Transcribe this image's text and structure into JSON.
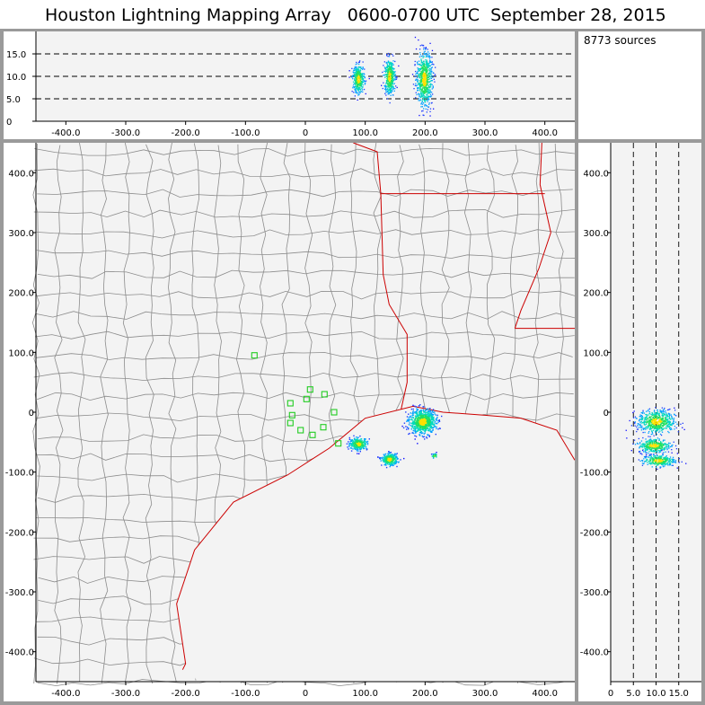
{
  "title": "Houston Lightning Mapping Array   0600-0700 UTC  September 28, 2015",
  "source_count": "8773 sources",
  "colors": {
    "border": "#9a9a9a",
    "plot_bg": "#f3f3f3",
    "county": "#8c8c8c",
    "state_coast": "#cc0000",
    "station": "#22cc22"
  },
  "chart_data": [
    {
      "name": "altitude-vs-x",
      "type": "scatter",
      "xlim": [
        -450,
        450
      ],
      "ylim": [
        0,
        20
      ],
      "x_ticks": [
        "-400.0",
        "-300.0",
        "-200.0",
        "-100.0",
        "0",
        "100.0",
        "200.0",
        "300.0",
        "400.0"
      ],
      "y_ticks": [
        "0",
        "5.0",
        "10.0",
        "15.0"
      ],
      "dashed_lines_y": [
        5,
        10,
        15
      ],
      "clusters": [
        {
          "x": 88,
          "alt": 9.5,
          "spread_x": 10,
          "spread_alt": 3.5,
          "count": 350
        },
        {
          "x": 140,
          "alt": 10.0,
          "spread_x": 9,
          "spread_alt": 4.5,
          "count": 400
        },
        {
          "x": 198,
          "alt": 9.5,
          "spread_x": 13,
          "spread_alt": 6.5,
          "count": 700
        }
      ]
    },
    {
      "name": "plan-view",
      "type": "scatter",
      "xlim": [
        -450,
        450
      ],
      "ylim": [
        -450,
        450
      ],
      "x_ticks": [
        "-400.0",
        "-300.0",
        "-200.0",
        "-100.0",
        "0",
        "100.0",
        "200.0",
        "300.0",
        "400.0"
      ],
      "y_ticks": [
        "400.0",
        "300.0",
        "200.0",
        "100.0",
        "0",
        "-100.0",
        "-200.0",
        "-300.0",
        "-400.0"
      ],
      "clusters": [
        {
          "x": 195,
          "y": -15,
          "spread_x": 18,
          "spread_y": 16,
          "count": 800
        },
        {
          "x": 88,
          "y": -52,
          "spread_x": 12,
          "spread_y": 8,
          "count": 300
        },
        {
          "x": 140,
          "y": -78,
          "spread_x": 11,
          "spread_y": 8,
          "count": 300
        },
        {
          "x": 215,
          "y": -72,
          "spread_x": 4,
          "spread_y": 3,
          "count": 30
        }
      ],
      "stations": [
        {
          "x": -85,
          "y": 95
        },
        {
          "x": -25,
          "y": 15
        },
        {
          "x": 8,
          "y": 38
        },
        {
          "x": 32,
          "y": 30
        },
        {
          "x": 2,
          "y": 22
        },
        {
          "x": -22,
          "y": -5
        },
        {
          "x": -25,
          "y": -18
        },
        {
          "x": -8,
          "y": -30
        },
        {
          "x": 12,
          "y": -38
        },
        {
          "x": 30,
          "y": -25
        },
        {
          "x": 48,
          "y": 0
        },
        {
          "x": 55,
          "y": -52
        }
      ]
    },
    {
      "name": "y-vs-altitude",
      "type": "scatter",
      "xlim": [
        0,
        20
      ],
      "ylim": [
        -450,
        450
      ],
      "x_ticks": [
        "0",
        "5.0",
        "10.0",
        "15.0"
      ],
      "y_ticks": [
        "400.0",
        "300.0",
        "200.0",
        "100.0",
        "0",
        "-100.0",
        "-200.0",
        "-300.0",
        "-400.0"
      ],
      "dashed_lines_x": [
        5,
        10,
        15
      ],
      "clusters": [
        {
          "alt": 10.0,
          "y": -15,
          "spread_alt": 4.5,
          "spread_y": 16,
          "count": 600
        },
        {
          "alt": 9.5,
          "y": -55,
          "spread_alt": 4.0,
          "spread_y": 10,
          "count": 350
        },
        {
          "alt": 10.5,
          "y": -80,
          "spread_alt": 4.0,
          "spread_y": 8,
          "count": 300
        }
      ]
    }
  ]
}
